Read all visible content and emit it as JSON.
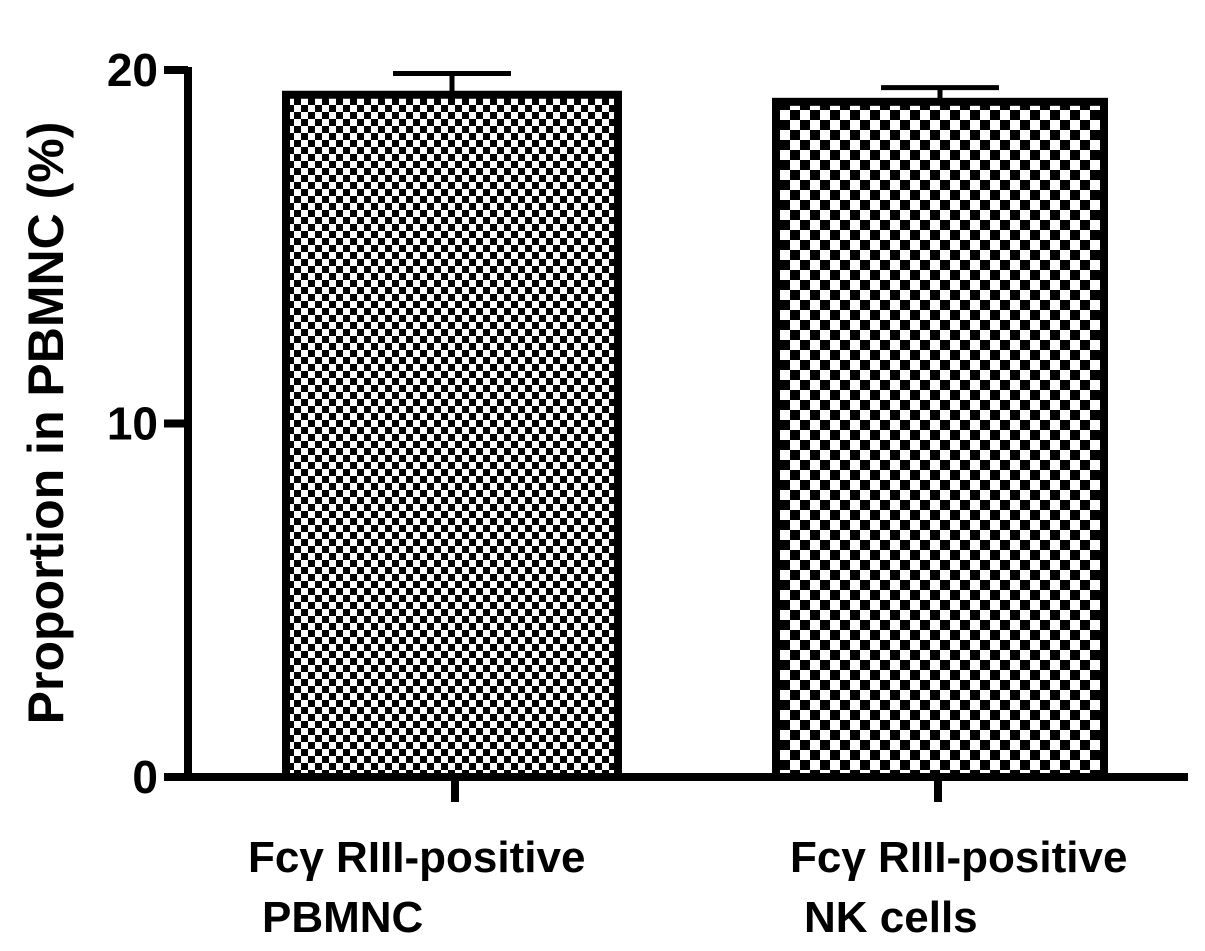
{
  "chart_data": {
    "type": "bar",
    "title": "",
    "xlabel": "",
    "ylabel": "Proportion in PBMNC (%)",
    "ylim": [
      0,
      20
    ],
    "yticks": [
      0,
      10,
      20
    ],
    "ytick_labels": [
      "0",
      "10",
      "20"
    ],
    "categories": [
      [
        "Fcγ RIII-positive",
        "PBMNC"
      ],
      [
        "Fcγ RIII-positive",
        "NK cells"
      ]
    ],
    "values": [
      19.3,
      19.1
    ],
    "errors": [
      0.6,
      0.4
    ],
    "patterns": [
      "fine-checker",
      "coarse-checker"
    ],
    "grid": false,
    "legend": "none",
    "colors": {
      "bar_fill_dark": "#000000",
      "bar_fill_light": "#ffffff",
      "axis": "#000000"
    }
  }
}
